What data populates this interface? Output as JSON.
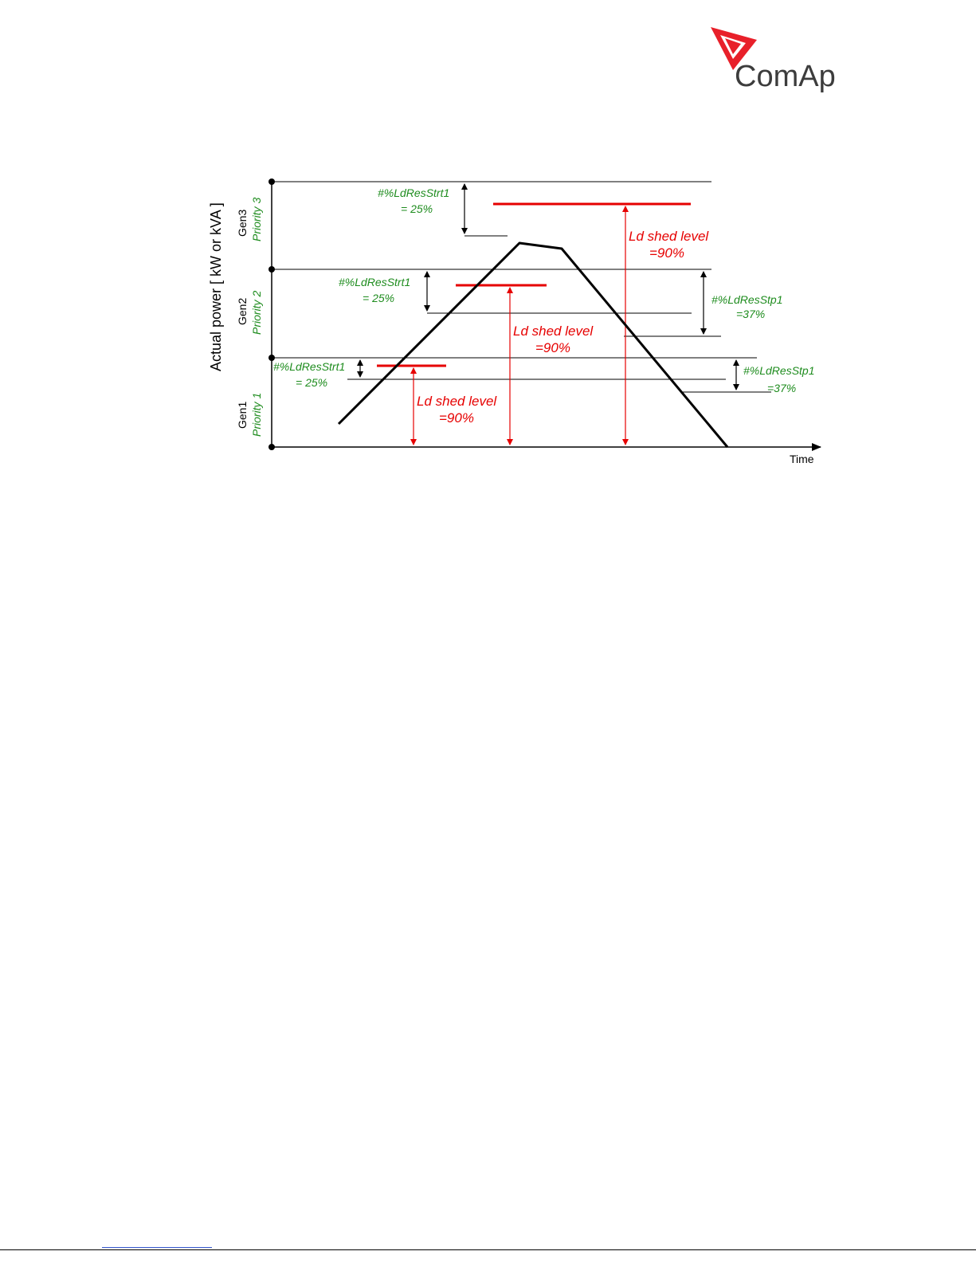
{
  "header": {
    "logo_text": "ComAp",
    "logo_icon": "comap-triangle-icon",
    "brand_color": "#e8202a"
  },
  "diagram": {
    "y_axis_label": "Actual power [ kW or kVA ]",
    "x_axis_label": "Time",
    "gensets": [
      {
        "gen": "Gen3",
        "priority": "Priority 3"
      },
      {
        "gen": "Gen2",
        "priority": "Priority 2"
      },
      {
        "gen": "Gen1",
        "priority": "Priority 1"
      }
    ],
    "reserve_start_labels": [
      {
        "name": "#%LdResStrt1",
        "value": "= 25%"
      },
      {
        "name": "#%LdResStrt1",
        "value": "= 25%"
      },
      {
        "name": "#%LdResStrt1",
        "value": "= 25%"
      }
    ],
    "reserve_stop_labels": [
      {
        "name": "#%LdResStp1",
        "value": "=37%"
      },
      {
        "name": "#%LdResStp1",
        "value": "=37%"
      }
    ],
    "load_shed_labels": [
      {
        "name": "Ld shed  level",
        "value": "=90%"
      },
      {
        "name": "Ld shed  level",
        "value": "=90%"
      },
      {
        "name": "Ld shed  level",
        "value": "=90%"
      }
    ],
    "colors": {
      "green": "#1e8c1e",
      "red": "#e60000",
      "line": "#000000"
    }
  }
}
